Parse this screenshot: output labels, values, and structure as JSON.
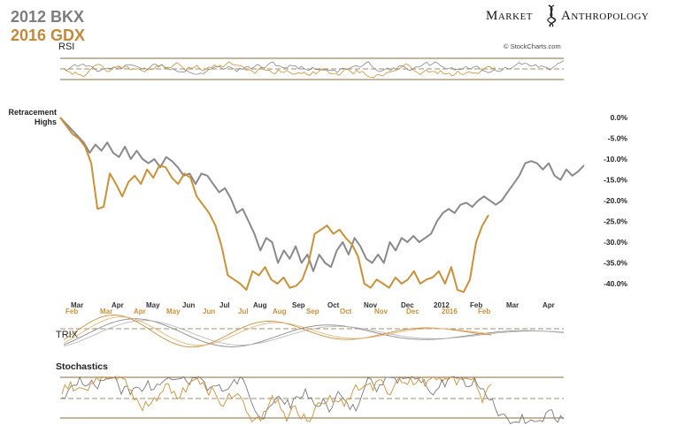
{
  "titles": {
    "line1": "2012 BKX",
    "line2": "2016 GDX",
    "brand_m": "M",
    "brand_arket": "ARKET",
    "brand_a": "A",
    "brand_nthropology": "NTHROPOLOGY",
    "credit": "© StockCharts.com"
  },
  "colors": {
    "bkx": "#8a8a8a",
    "gdx": "#c9913a",
    "grid_brown": "#8b6a3e",
    "text_dark": "#222222",
    "title_gray": "#7d7d7d",
    "title_gold": "#c08a3a"
  },
  "panels": {
    "rsi_label": "RSI",
    "trix_label": "TRIX",
    "stoch_label": "Stochastics",
    "retracement_line1": "Retracement",
    "retracement_line2": "Highs"
  },
  "chart_data": {
    "type": "line",
    "y_unit": "percent retracement from high",
    "ylim": [
      -44,
      2
    ],
    "y_ticks": [
      "0.0%",
      "-5.0%",
      "-10.0%",
      "-15.0%",
      "-20.0%",
      "-25.0%",
      "-30.0%",
      "-35.0%",
      "-40.0%"
    ],
    "y_tick_values": [
      0,
      -5,
      -10,
      -15,
      -20,
      -25,
      -30,
      -35,
      -40
    ],
    "x_labels_bkx": [
      "Mar",
      "Apr",
      "May",
      "Jun",
      "Jul",
      "Aug",
      "Sep",
      "Oct",
      "Nov",
      "Dec",
      "2012",
      "Feb",
      "Mar",
      "Apr"
    ],
    "x_labels_gdx": [
      "Feb",
      "Mar",
      "Apr",
      "May",
      "Jun",
      "Jul",
      "Aug",
      "Sep",
      "Oct",
      "Nov",
      "Dec",
      "2016",
      "Feb"
    ],
    "series": [
      {
        "name": "2012 BKX",
        "values": [
          0,
          -1.5,
          -3,
          -4.5,
          -6,
          -8.5,
          -6.5,
          -8,
          -6,
          -8.5,
          -9.5,
          -7,
          -10,
          -8,
          -10,
          -11,
          -10,
          -12,
          -9.5,
          -10.5,
          -12,
          -14,
          -13.5,
          -16,
          -13.5,
          -14,
          -16,
          -18,
          -17,
          -19.5,
          -23,
          -22,
          -25,
          -28,
          -32,
          -29,
          -30,
          -35,
          -32,
          -34,
          -31,
          -35,
          -33,
          -37,
          -33,
          -35,
          -36,
          -32,
          -30,
          -33,
          -29,
          -31,
          -34,
          -35,
          -33,
          -35,
          -30,
          -32,
          -29,
          -30,
          -28.5,
          -30,
          -29,
          -28,
          -25,
          -23,
          -22,
          -23,
          -21,
          -20.5,
          -21.5,
          -20,
          -19,
          -20,
          -21,
          -20,
          -18,
          -16,
          -14,
          -11,
          -10.5,
          -11,
          -12.5,
          -11,
          -14,
          -15,
          -12.5,
          -14,
          -13,
          -11.5
        ]
      },
      {
        "name": "2016 GDX",
        "values": [
          0,
          -2,
          -4,
          -5,
          -7,
          -11,
          -22,
          -21.5,
          -13.5,
          -16,
          -19,
          -15.5,
          -14,
          -16,
          -12.5,
          -14.5,
          -11.5,
          -12,
          -14.5,
          -16,
          -13.5,
          -14.5,
          -19,
          -21,
          -23,
          -26,
          -31,
          -38,
          -39,
          -40,
          -41.5,
          -37,
          -38,
          -36,
          -39,
          -40,
          -38.5,
          -41,
          -40.5,
          -39,
          -35,
          -28,
          -27,
          -26,
          -28,
          -27,
          -29,
          -30.5,
          -33.5,
          -40,
          -41,
          -39,
          -40,
          -41,
          -38.5,
          -40,
          -39,
          -37,
          -40,
          -39,
          -38.5,
          -37,
          -40,
          -36,
          -41.5,
          -42,
          -39,
          -30,
          -26,
          -23.5
        ]
      }
    ]
  }
}
